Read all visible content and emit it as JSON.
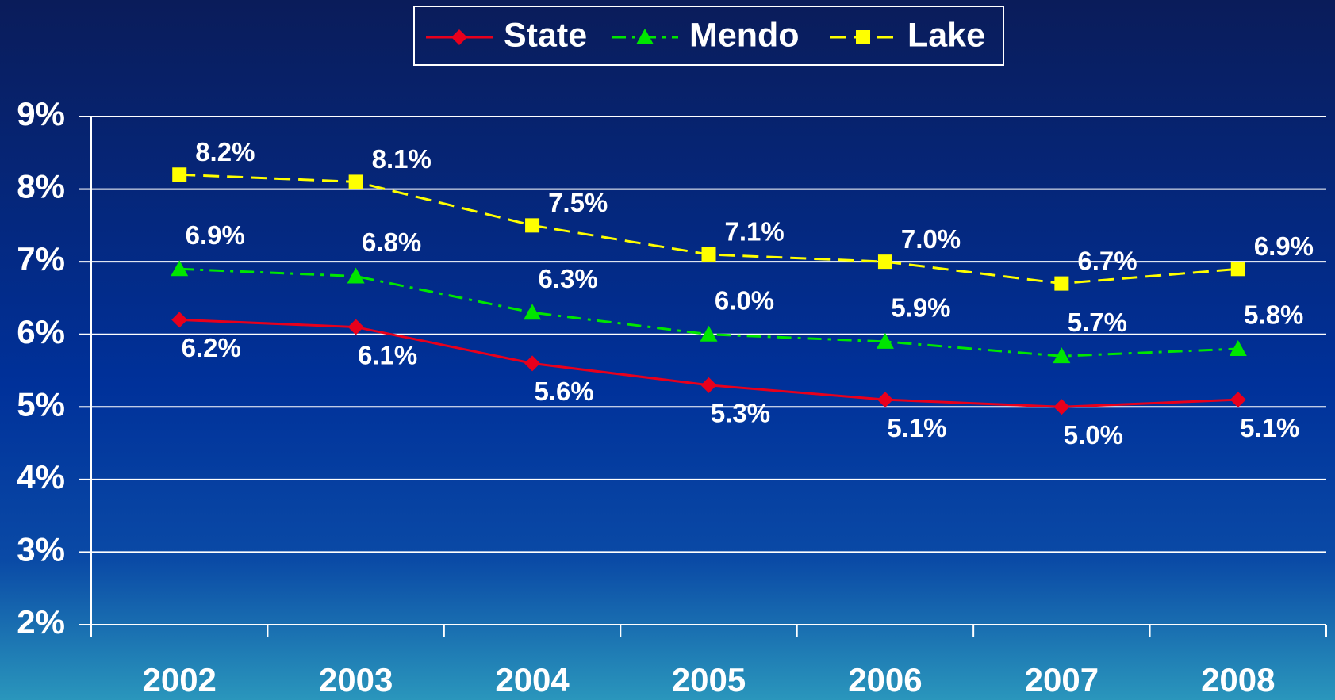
{
  "chart_data": {
    "type": "line",
    "categories": [
      "2002",
      "2003",
      "2004",
      "2005",
      "2006",
      "2007",
      "2008"
    ],
    "series": [
      {
        "name": "State",
        "color": "#e8001c",
        "values": [
          6.2,
          6.1,
          5.6,
          5.3,
          5.1,
          5.0,
          5.1
        ],
        "value_labels": [
          "6.2%",
          "6.1%",
          "5.6%",
          "5.3%",
          "5.1%",
          "5.0%",
          "5.1%"
        ]
      },
      {
        "name": "Mendo",
        "color": "#00e600",
        "values": [
          6.9,
          6.8,
          6.3,
          6.0,
          5.9,
          5.7,
          5.8
        ],
        "value_labels": [
          "6.9%",
          "6.8%",
          "6.3%",
          "6.0%",
          "5.9%",
          "5.7%",
          "5.8%"
        ]
      },
      {
        "name": "Lake",
        "color": "#ffff00",
        "values": [
          8.2,
          8.1,
          7.5,
          7.1,
          7.0,
          6.7,
          6.9
        ],
        "value_labels": [
          "8.2%",
          "8.1%",
          "7.5%",
          "7.1%",
          "7.0%",
          "6.7%",
          "6.9%"
        ]
      }
    ],
    "ylim": [
      2,
      9
    ],
    "yticks": [
      {
        "value": 2,
        "label": "2%"
      },
      {
        "value": 3,
        "label": "3%"
      },
      {
        "value": 4,
        "label": "4%"
      },
      {
        "value": 5,
        "label": "5%"
      },
      {
        "value": 6,
        "label": "6%"
      },
      {
        "value": 7,
        "label": "7%"
      },
      {
        "value": 8,
        "label": "8%"
      },
      {
        "value": 9,
        "label": "9%"
      }
    ],
    "grid": true,
    "legend": "top"
  }
}
